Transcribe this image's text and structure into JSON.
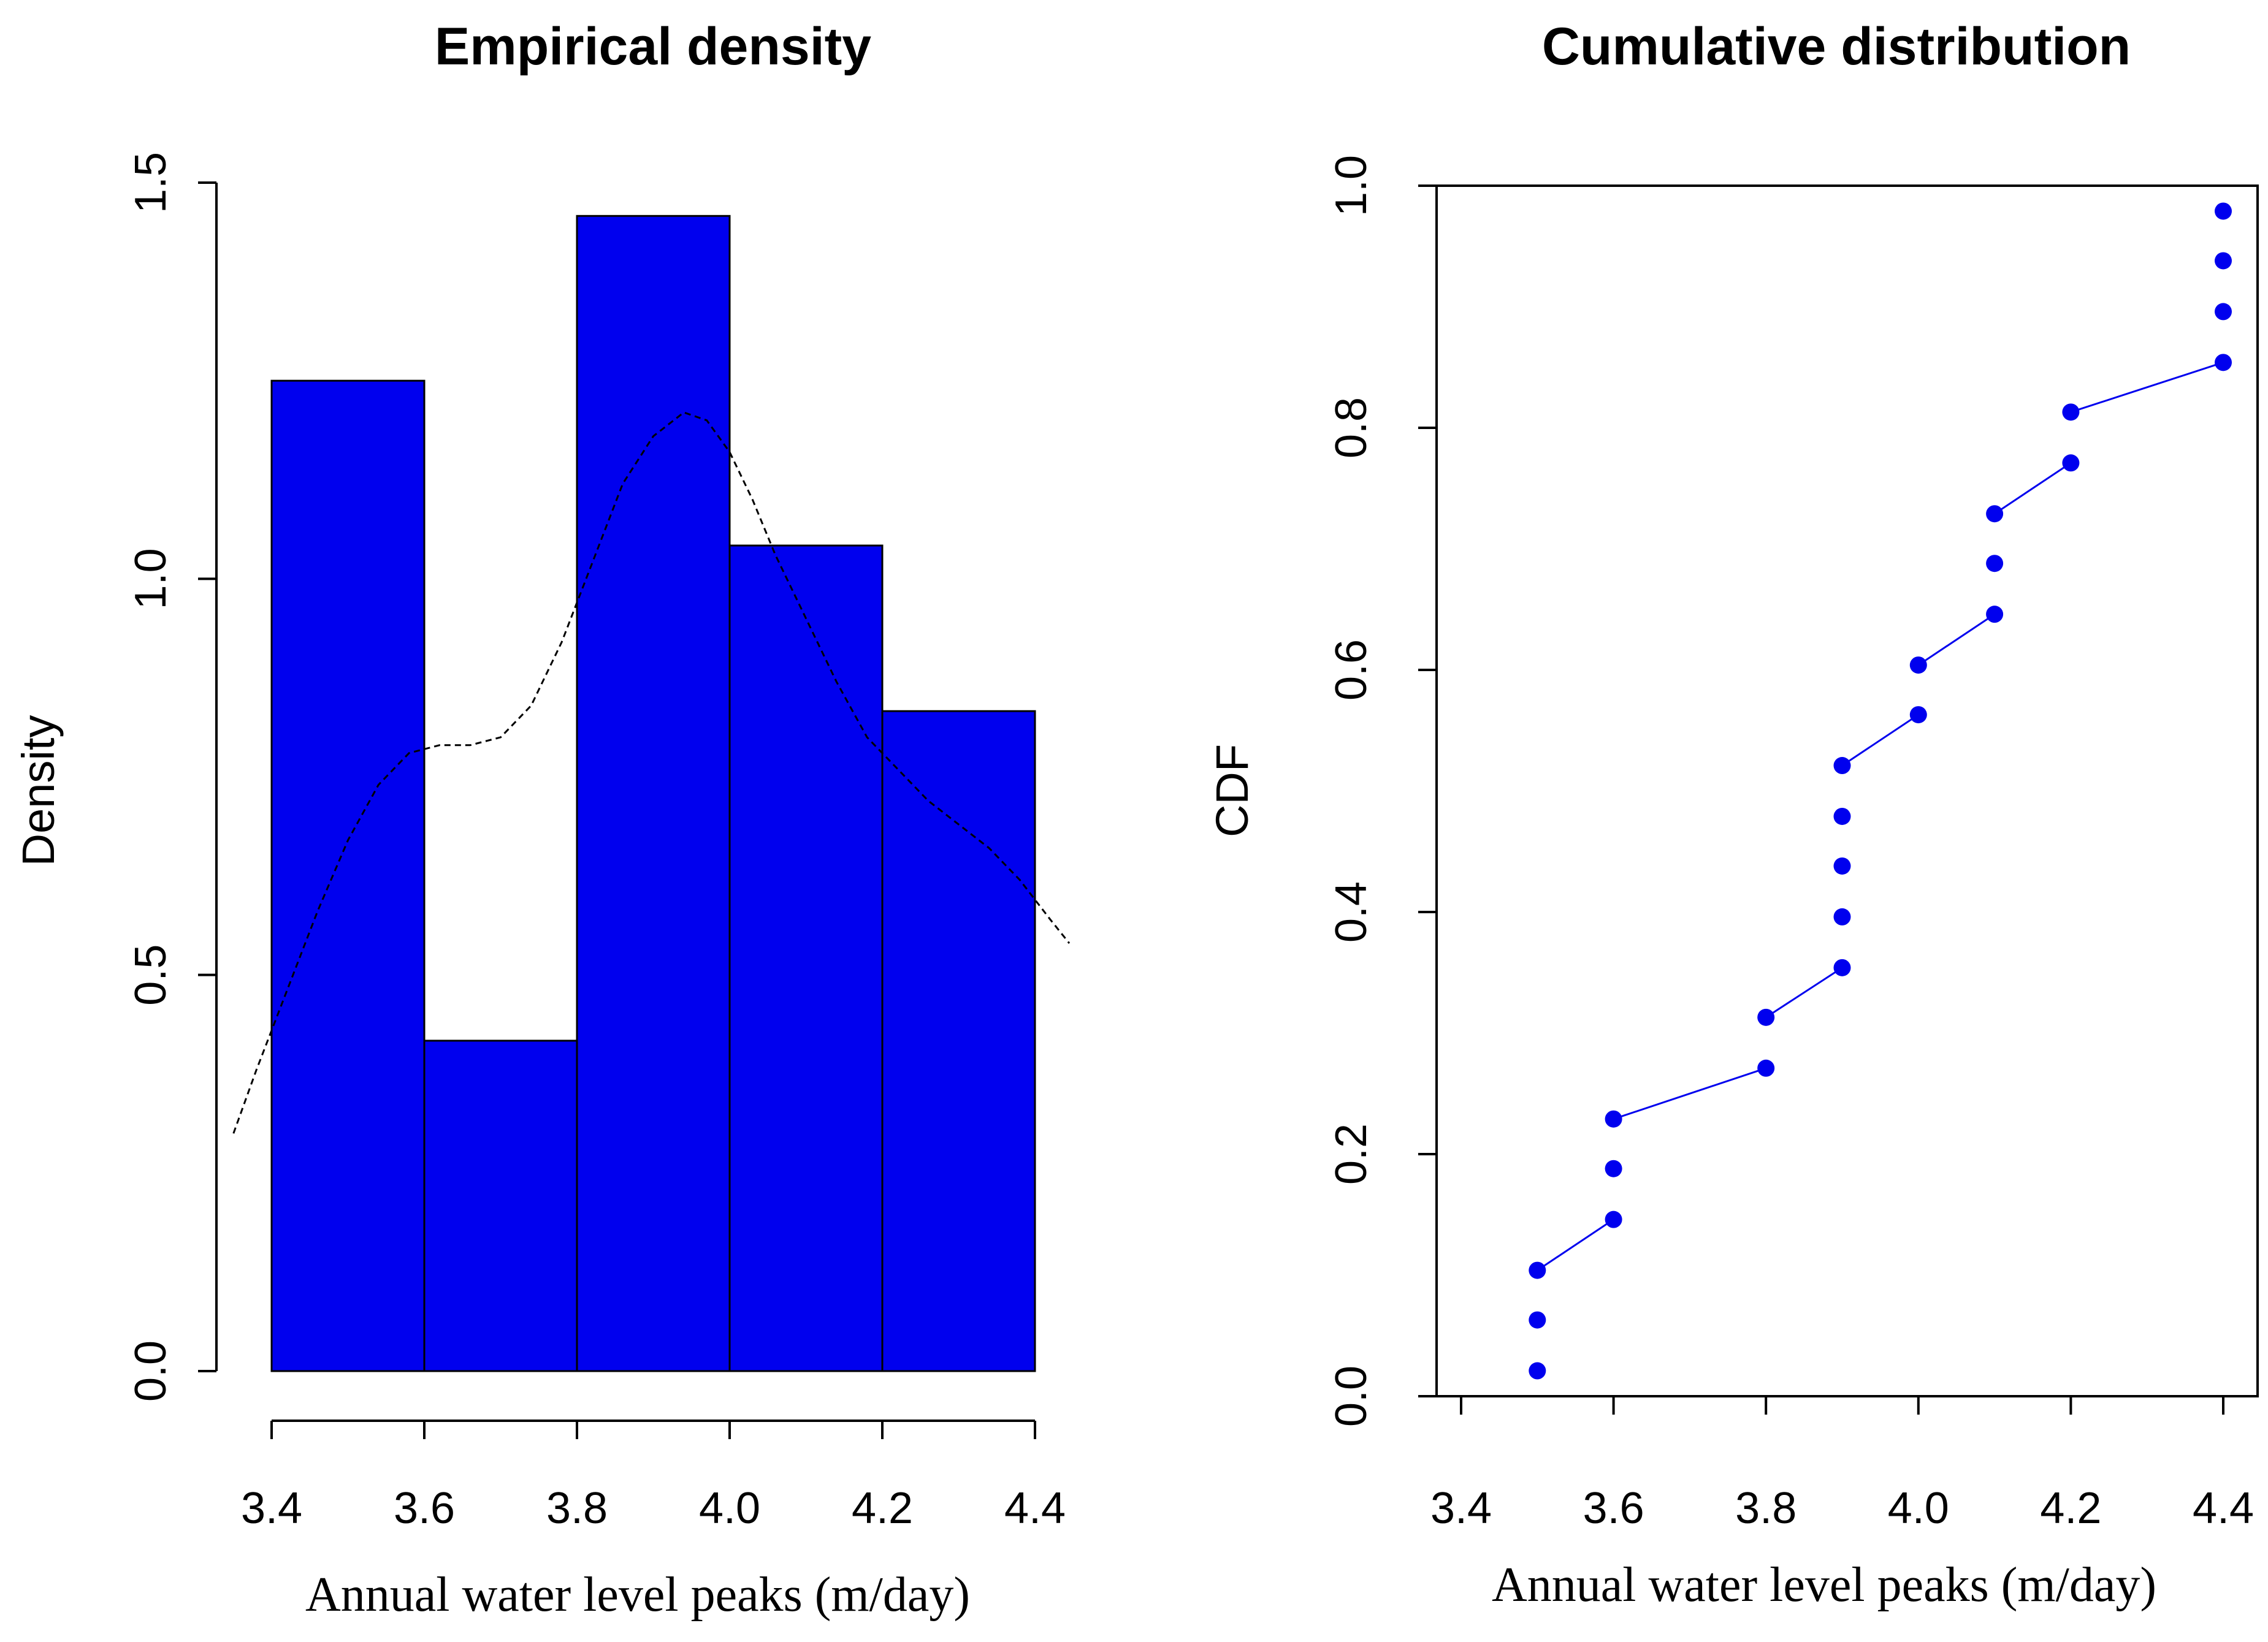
{
  "chart_data": [
    {
      "type": "bar",
      "title": "Empirical density",
      "xlabel": "Annual water level peaks (m/day)",
      "ylabel": "Density",
      "xlim": [
        3.4,
        4.4
      ],
      "ylim": [
        0,
        1.5
      ],
      "bar_color": "#0000ee",
      "bins": [
        {
          "from": 3.4,
          "to": 3.6,
          "density": 1.25
        },
        {
          "from": 3.6,
          "to": 3.8,
          "density": 0.417
        },
        {
          "from": 3.8,
          "to": 4.0,
          "density": 1.458
        },
        {
          "from": 4.0,
          "to": 4.2,
          "density": 1.042
        },
        {
          "from": 4.2,
          "to": 4.4,
          "density": 0.833
        }
      ],
      "x_ticks": [
        "3.4",
        "3.6",
        "3.8",
        "4.0",
        "4.2",
        "4.4"
      ],
      "y_ticks": [
        "0.0",
        "0.5",
        "1.0",
        "1.5"
      ],
      "density_curve": {
        "style": "dashed",
        "x": [
          3.35,
          3.38,
          3.42,
          3.46,
          3.5,
          3.54,
          3.58,
          3.62,
          3.66,
          3.7,
          3.74,
          3.78,
          3.82,
          3.86,
          3.9,
          3.94,
          3.97,
          4.0,
          4.03,
          4.06,
          4.1,
          4.14,
          4.18,
          4.22,
          4.26,
          4.3,
          4.34,
          4.38,
          4.42,
          4.445
        ],
        "y": [
          0.3,
          0.38,
          0.48,
          0.58,
          0.67,
          0.74,
          0.78,
          0.79,
          0.79,
          0.8,
          0.84,
          0.92,
          1.02,
          1.12,
          1.18,
          1.21,
          1.2,
          1.16,
          1.1,
          1.03,
          0.95,
          0.87,
          0.8,
          0.76,
          0.72,
          0.69,
          0.66,
          0.62,
          0.57,
          0.54
        ]
      }
    },
    {
      "type": "scatter",
      "title": "Cumulative distribution",
      "xlabel": "Annual water level peaks (m/day)",
      "ylabel": "CDF",
      "xlim": [
        3.4,
        4.4
      ],
      "ylim": [
        0,
        1.0
      ],
      "point_color": "#0000ee",
      "x": [
        3.5,
        3.5,
        3.5,
        3.6,
        3.6,
        3.6,
        3.8,
        3.8,
        3.9,
        3.9,
        3.9,
        3.9,
        3.9,
        4.0,
        4.0,
        4.1,
        4.1,
        4.1,
        4.2,
        4.2,
        4.4,
        4.4,
        4.4,
        4.4
      ],
      "y": [
        0.021,
        0.063,
        0.104,
        0.146,
        0.188,
        0.229,
        0.271,
        0.313,
        0.354,
        0.396,
        0.438,
        0.479,
        0.521,
        0.563,
        0.604,
        0.646,
        0.688,
        0.729,
        0.771,
        0.813,
        0.854,
        0.896,
        0.938,
        0.979
      ],
      "connected_pairs": [
        [
          2,
          3
        ],
        [
          5,
          6
        ],
        [
          7,
          8
        ],
        [
          12,
          13
        ],
        [
          14,
          15
        ],
        [
          17,
          18
        ],
        [
          19,
          20
        ]
      ],
      "x_ticks": [
        "3.4",
        "3.6",
        "3.8",
        "4.0",
        "4.2",
        "4.4"
      ],
      "y_ticks": [
        "0.0",
        "0.2",
        "0.4",
        "0.6",
        "0.8",
        "1.0"
      ]
    }
  ]
}
